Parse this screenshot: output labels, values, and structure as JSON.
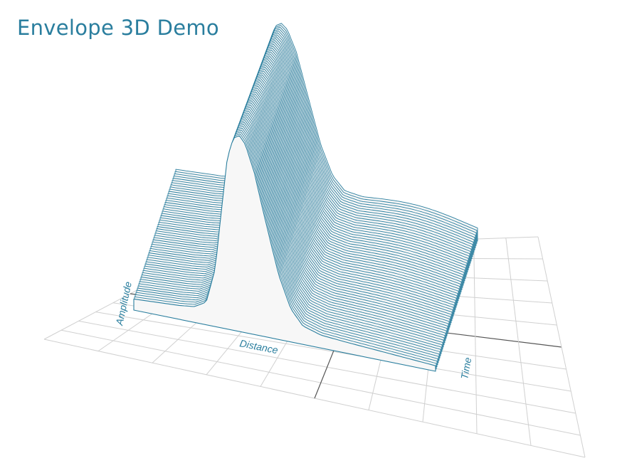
{
  "page": {
    "title": "Envelope 3D Demo"
  },
  "chart_data": {
    "type": "3d-waterfall",
    "axes": {
      "x_label": "Distance",
      "y_label": "Amplitude",
      "z_label": "Time"
    },
    "colors": {
      "line": "#2a7e9e",
      "fill": "#f7f7f7",
      "grid": "#d0d0d0",
      "axis": "#555555"
    },
    "grid": true,
    "x_range": [
      0,
      100
    ],
    "y_range": [
      0,
      1
    ],
    "trace_count": 60,
    "envelope": {
      "description_of_shape": "",
      "front_trace": [
        [
          0,
          0.06
        ],
        [
          5,
          0.065
        ],
        [
          10,
          0.07
        ],
        [
          15,
          0.075
        ],
        [
          20,
          0.085
        ],
        [
          24,
          0.12
        ],
        [
          27,
          0.3
        ],
        [
          29,
          0.6
        ],
        [
          31,
          0.88
        ],
        [
          33,
          0.98
        ],
        [
          35,
          1.0
        ],
        [
          37,
          0.97
        ],
        [
          40,
          0.85
        ],
        [
          44,
          0.6
        ],
        [
          48,
          0.35
        ],
        [
          52,
          0.18
        ],
        [
          56,
          0.1
        ],
        [
          62,
          0.07
        ],
        [
          70,
          0.06
        ],
        [
          80,
          0.05
        ],
        [
          90,
          0.04
        ],
        [
          100,
          0.03
        ]
      ]
    }
  }
}
